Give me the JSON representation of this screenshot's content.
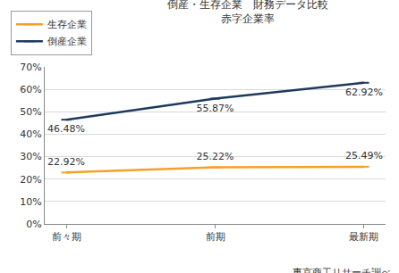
{
  "chart_data": {
    "type": "line",
    "title": "倒産・生存企業　財務データ比較",
    "subtitle": "赤字企業率",
    "categories": [
      "前々期",
      "前期",
      "最新期"
    ],
    "series": [
      {
        "name": "生存企業",
        "color": "#f5a028",
        "marker": "dash",
        "values": [
          22.92,
          25.22,
          25.49
        ],
        "value_labels": [
          "22.92%",
          "25.22%",
          "25.49%"
        ]
      },
      {
        "name": "倒産企業",
        "color": "#1f3a5f",
        "marker": "dash",
        "values": [
          46.48,
          55.87,
          62.92
        ],
        "value_labels": [
          "46.48%",
          "55.87%",
          "62.92%"
        ]
      }
    ],
    "ylim": [
      0,
      70
    ],
    "yticks": [
      {
        "value": 0,
        "label": "0%"
      },
      {
        "value": 10,
        "label": "10%"
      },
      {
        "value": 20,
        "label": "20%"
      },
      {
        "value": 30,
        "label": "30%"
      },
      {
        "value": 40,
        "label": "40%"
      },
      {
        "value": 50,
        "label": "50%"
      },
      {
        "value": 60,
        "label": "60%"
      },
      {
        "value": 70,
        "label": "70%"
      }
    ],
    "grid": true,
    "legend": "top-left",
    "data_labels": true,
    "annotations": [
      "東京商工リサーチ調べ"
    ]
  }
}
